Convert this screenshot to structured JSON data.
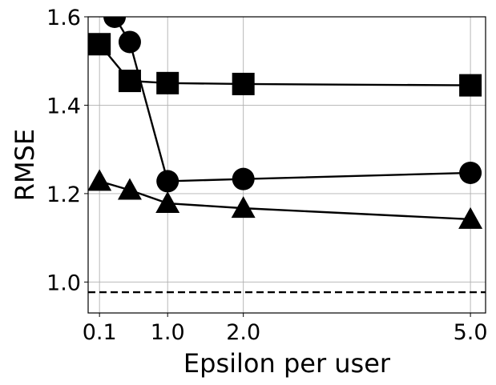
{
  "chart_data": {
    "type": "line",
    "title": "",
    "xlabel": "Epsilon per user",
    "ylabel": "RMSE",
    "xlim": [
      -0.05,
      5.2
    ],
    "ylim": [
      0.93,
      1.6
    ],
    "x_ticks": [
      0.1,
      1.0,
      2.0,
      5.0
    ],
    "x_tick_labels": [
      "0.1",
      "1.0",
      "2.0",
      "5.0"
    ],
    "y_ticks": [
      1.0,
      1.2,
      1.4,
      1.6
    ],
    "y_tick_labels": [
      "1.0",
      "1.2",
      "1.4",
      "1.6"
    ],
    "grid": true,
    "legend": false,
    "reference_line": {
      "y": 0.977,
      "style": "dashed"
    },
    "series": [
      {
        "marker": "square",
        "x": [
          0.1,
          0.5,
          1.0,
          2.0,
          5.0
        ],
        "y": [
          1.538,
          1.455,
          1.45,
          1.448,
          1.445
        ]
      },
      {
        "marker": "circle",
        "x": [
          0.3,
          0.5,
          1.0,
          2.0,
          5.0
        ],
        "y": [
          1.6,
          1.543,
          1.228,
          1.233,
          1.247
        ]
      },
      {
        "marker": "triangle",
        "x": [
          0.1,
          0.5,
          1.0,
          2.0,
          5.0
        ],
        "y": [
          1.228,
          1.208,
          1.178,
          1.167,
          1.142
        ]
      }
    ]
  }
}
